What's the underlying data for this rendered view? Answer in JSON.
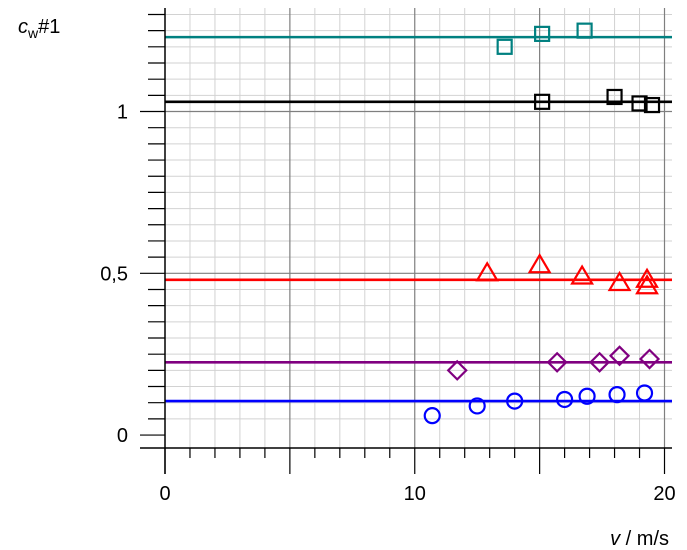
{
  "chart_data": {
    "type": "scatter",
    "title": "",
    "ylabel_var": "c",
    "ylabel_sub": "w",
    "ylabel_suffix": "#1",
    "xlabel_var": "v",
    "xlabel_unit": " / m/s",
    "xlim": [
      0,
      20.3
    ],
    "ylim": [
      -0.04,
      1.32
    ],
    "x_ticks": [
      {
        "value": 0,
        "label": "0"
      },
      {
        "value": 10,
        "label": "10"
      },
      {
        "value": 20,
        "label": "20"
      }
    ],
    "y_ticks": [
      {
        "value": 0,
        "label": "0"
      },
      {
        "value": 0.5,
        "label": "0,5"
      },
      {
        "value": 1,
        "label": "1"
      }
    ],
    "grid": true,
    "series": [
      {
        "marker": "square",
        "color": "#008080",
        "fit": 1.23,
        "points": [
          {
            "x": 13.6,
            "y": 1.2
          },
          {
            "x": 15.1,
            "y": 1.24
          },
          {
            "x": 16.8,
            "y": 1.25
          }
        ]
      },
      {
        "marker": "square",
        "color": "#000000",
        "fit": 1.03,
        "points": [
          {
            "x": 15.1,
            "y": 1.03
          },
          {
            "x": 18.0,
            "y": 1.045
          },
          {
            "x": 19.0,
            "y": 1.025
          },
          {
            "x": 19.5,
            "y": 1.02
          }
        ]
      },
      {
        "marker": "triangle",
        "color": "#ff0000",
        "fit": 0.48,
        "points": [
          {
            "x": 12.9,
            "y": 0.5
          },
          {
            "x": 15.0,
            "y": 0.525
          },
          {
            "x": 16.7,
            "y": 0.49
          },
          {
            "x": 18.2,
            "y": 0.47
          },
          {
            "x": 19.3,
            "y": 0.48
          },
          {
            "x": 19.3,
            "y": 0.46
          }
        ]
      },
      {
        "marker": "diamond",
        "color": "#800080",
        "fit": 0.225,
        "points": [
          {
            "x": 11.7,
            "y": 0.2
          },
          {
            "x": 15.7,
            "y": 0.225
          },
          {
            "x": 17.4,
            "y": 0.225
          },
          {
            "x": 18.2,
            "y": 0.245
          },
          {
            "x": 19.4,
            "y": 0.235
          }
        ]
      },
      {
        "marker": "circle",
        "color": "#0000ff",
        "fit": 0.105,
        "points": [
          {
            "x": 10.7,
            "y": 0.06
          },
          {
            "x": 12.5,
            "y": 0.09
          },
          {
            "x": 14.0,
            "y": 0.105
          },
          {
            "x": 16.0,
            "y": 0.11
          },
          {
            "x": 16.9,
            "y": 0.12
          },
          {
            "x": 18.1,
            "y": 0.125
          },
          {
            "x": 19.2,
            "y": 0.13
          }
        ]
      }
    ]
  }
}
